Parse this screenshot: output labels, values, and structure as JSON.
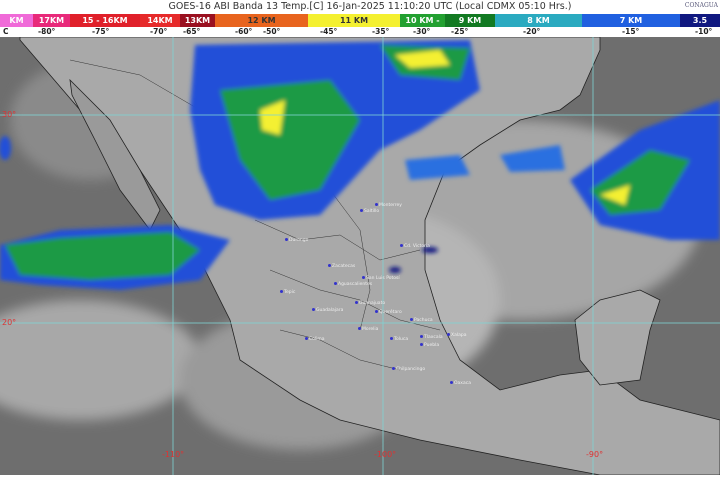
{
  "title": "GOES-16 ABI Banda 13 Temp.[C] 16-Jan-2025 11:10:20 UTC (Local CDMX  05:10 Hrs.)",
  "logo": "CONAGUA",
  "scale": [
    {
      "label": "KM",
      "color": "#f06ad8"
    },
    {
      "label": "17KM",
      "color": "#e8297a"
    },
    {
      "label": "15 - 16KM",
      "color": "#e0202a"
    },
    {
      "label": "14KM",
      "color": "#e62a2a"
    },
    {
      "label": "13KM",
      "color": "#9a1020"
    },
    {
      "label": "12 KM",
      "color": "#e8641e"
    },
    {
      "label": "11 KM",
      "color": "#f4f030"
    },
    {
      "label": "10 KM -",
      "color": "#22a030"
    },
    {
      "label": "9 KM",
      "color": "#127a22"
    },
    {
      "label": "8 KM",
      "color": "#2aaac0"
    },
    {
      "label": "7 KM",
      "color": "#2060e0"
    },
    {
      "label": "3.5",
      "color": "#101880"
    }
  ],
  "temps": [
    "C",
    "-80°",
    "-75°",
    "-70°",
    "-65°",
    "-60°",
    "-50°",
    "-45°",
    "-35°",
    "-30°",
    "-25°",
    "-20°",
    "-15°",
    "-10°"
  ],
  "grid_labels": {
    "lat": [
      "30°",
      "20°"
    ],
    "lon": [
      "-110°",
      "-100°",
      "-90°"
    ]
  },
  "cities": [
    "Monterrey",
    "Saltillo",
    "Durango",
    "Cd. Victoria",
    "Zacatecas",
    "San Luis Potosí",
    "Aguascalientes",
    "Tepic",
    "Guanajuato",
    "Querétaro",
    "Guadalajara",
    "Pachuca",
    "Morelia",
    "Colima",
    "Toluca",
    "Tlaxcala",
    "Puebla",
    "Xalapa",
    "Chilpancingo",
    "Oaxaca"
  ]
}
